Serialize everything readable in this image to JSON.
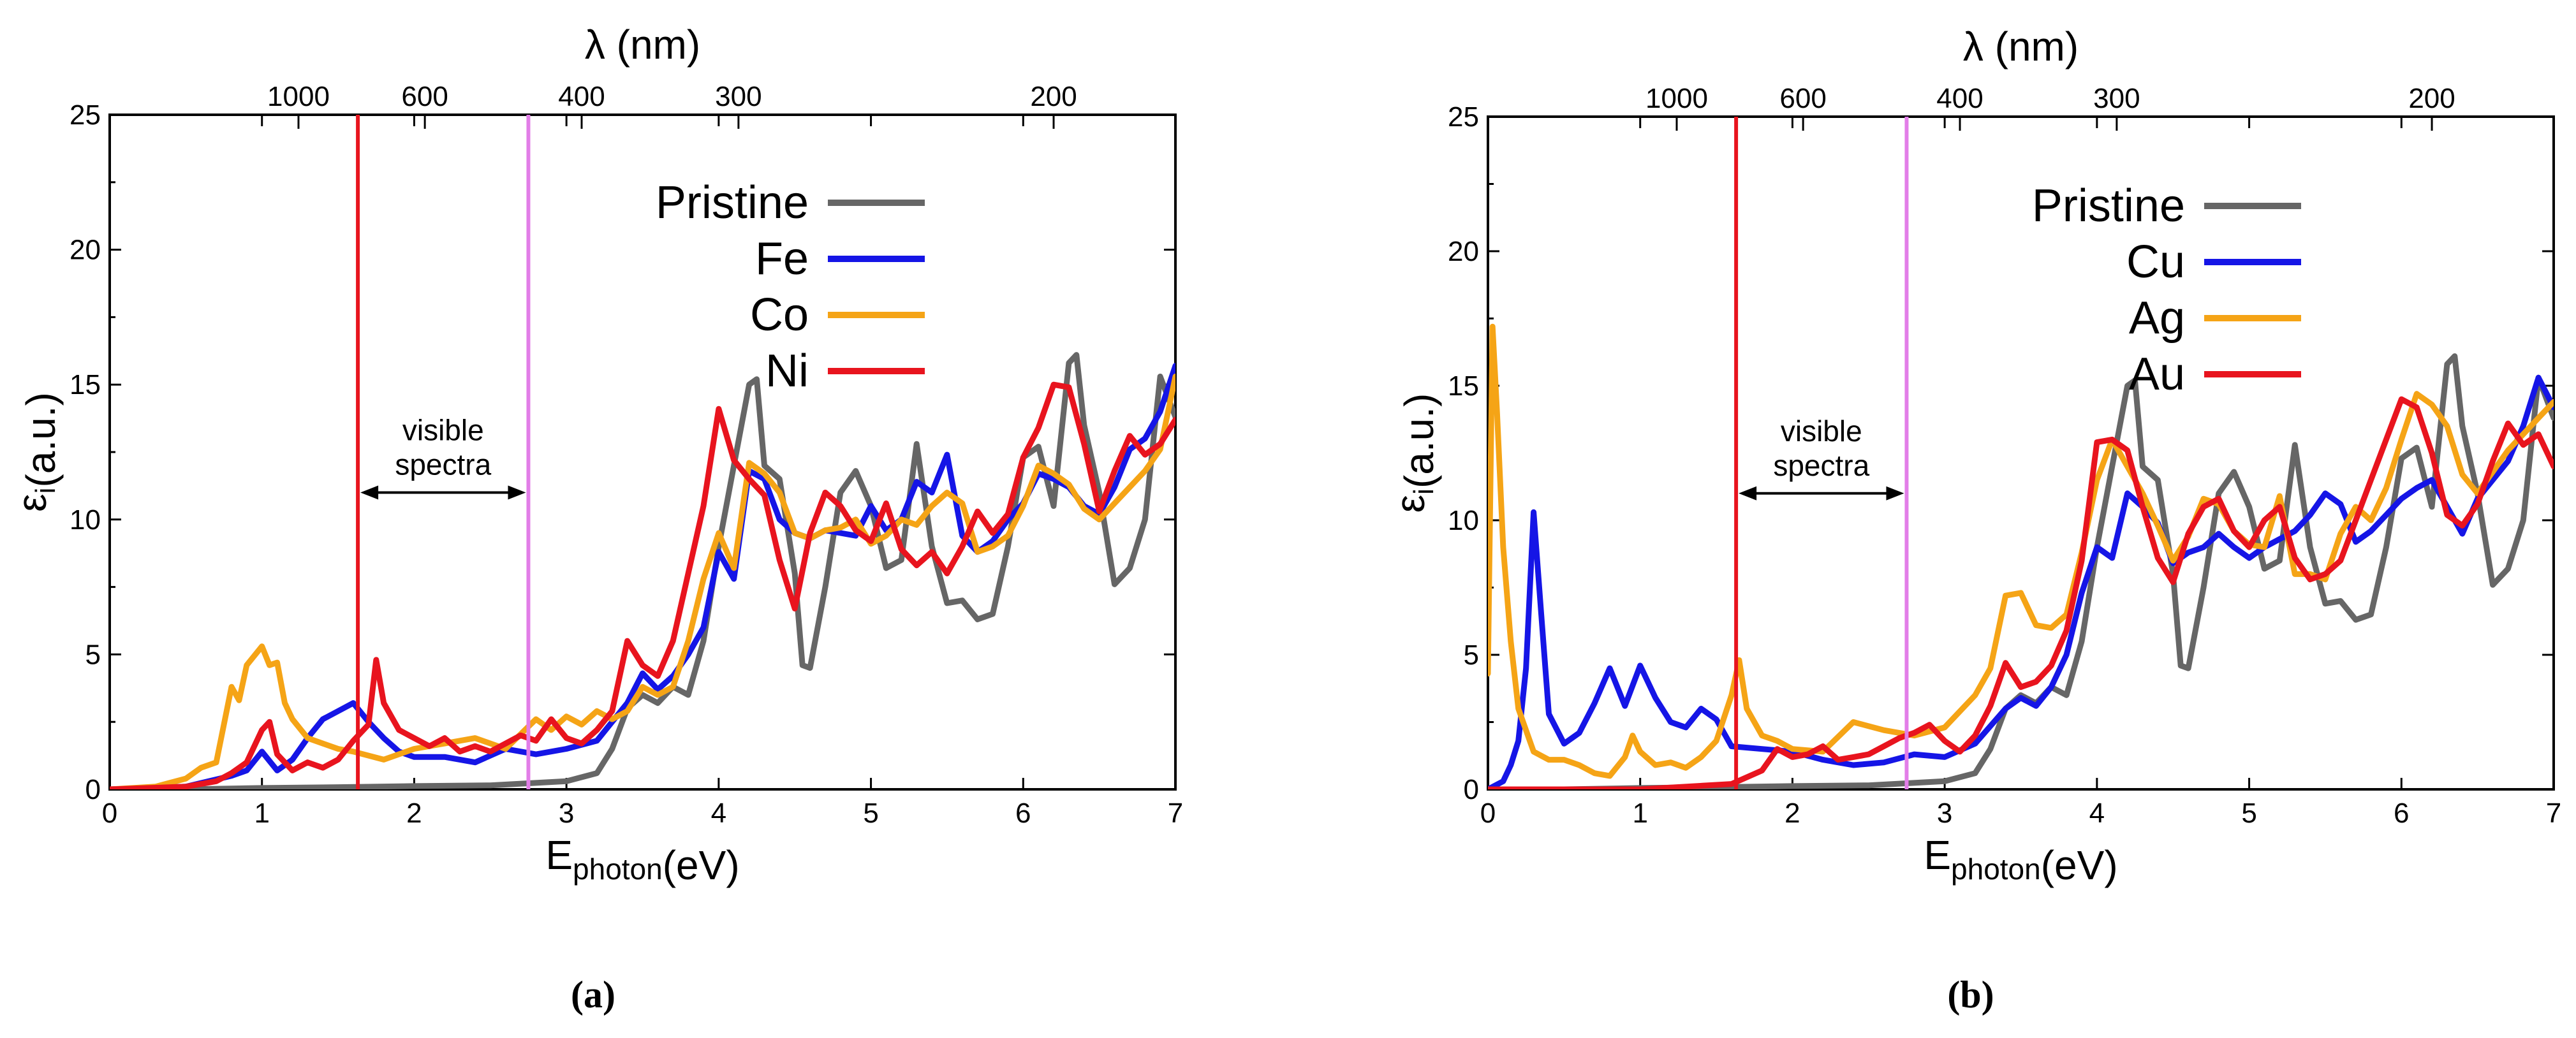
{
  "chart_data": [
    {
      "type": "line",
      "panel": "a",
      "caption": "(a)",
      "xlabel_main": "E",
      "xlabel_sub": "photon",
      "xlabel_unit": "(eV)",
      "ylabel_main": "ε",
      "ylabel_sub": "i",
      "ylabel_unit": "(a.u.)",
      "top_axis_label": "λ (nm)",
      "xlim": [
        0,
        7
      ],
      "ylim": [
        0,
        25
      ],
      "xticks": [
        0,
        1,
        2,
        3,
        4,
        5,
        6,
        7
      ],
      "yticks": [
        0,
        5,
        10,
        15,
        20,
        25
      ],
      "top_ticks": [
        {
          "label": "1000",
          "energy": 1.24
        },
        {
          "label": "600",
          "energy": 2.07
        },
        {
          "label": "400",
          "energy": 3.1
        },
        {
          "label": "300",
          "energy": 4.13
        },
        {
          "label": "200",
          "energy": 6.2
        }
      ],
      "vlines": [
        {
          "x": 1.63,
          "color": "#e8141e"
        },
        {
          "x": 2.75,
          "color": "#e27ee8"
        }
      ],
      "annotation": {
        "line1": "visible",
        "line2": "spectra",
        "x_from": 1.63,
        "x_to": 2.75,
        "y": 11
      },
      "series": [
        {
          "name": "Pristine",
          "color": "#666666",
          "x": [
            0,
            0.5,
            1,
            1.5,
            2,
            2.5,
            3,
            3.2,
            3.3,
            3.4,
            3.5,
            3.6,
            3.7,
            3.8,
            3.9,
            4,
            4.1,
            4.2,
            4.25,
            4.3,
            4.4,
            4.5,
            4.55,
            4.6,
            4.7,
            4.8,
            4.9,
            5,
            5.1,
            5.2,
            5.3,
            5.4,
            5.5,
            5.6,
            5.7,
            5.8,
            5.9,
            6,
            6.1,
            6.2,
            6.3,
            6.35,
            6.4,
            6.5,
            6.6,
            6.7,
            6.8,
            6.9,
            7
          ],
          "y": [
            0,
            0,
            0.05,
            0.08,
            0.12,
            0.15,
            0.3,
            0.6,
            1.5,
            3,
            3.5,
            3.2,
            3.8,
            3.5,
            5.5,
            9,
            12,
            15,
            15.2,
            12,
            11.5,
            8,
            4.6,
            4.5,
            7.5,
            11,
            11.8,
            10.5,
            8.2,
            8.5,
            12.8,
            9,
            6.9,
            7,
            6.3,
            6.5,
            9,
            12.3,
            12.7,
            10.5,
            15.8,
            16.1,
            13.5,
            11,
            7.6,
            8.2,
            10,
            15.3,
            13.8
          ]
        },
        {
          "name": "Fe",
          "color": "#1515e6",
          "x": [
            0,
            0.5,
            0.8,
            0.9,
            1,
            1.1,
            1.2,
            1.3,
            1.4,
            1.5,
            1.6,
            1.7,
            1.8,
            1.9,
            2,
            2.2,
            2.4,
            2.6,
            2.8,
            3,
            3.2,
            3.4,
            3.5,
            3.6,
            3.7,
            3.8,
            3.9,
            4,
            4.1,
            4.2,
            4.3,
            4.4,
            4.5,
            4.6,
            4.7,
            4.8,
            4.9,
            5,
            5.1,
            5.2,
            5.3,
            5.4,
            5.5,
            5.6,
            5.7,
            5.8,
            5.9,
            6,
            6.1,
            6.2,
            6.3,
            6.4,
            6.5,
            6.6,
            6.7,
            6.8,
            6.9,
            7
          ],
          "y": [
            0,
            0.1,
            0.5,
            0.7,
            1.4,
            0.7,
            1.1,
            1.9,
            2.6,
            2.9,
            3.2,
            2.5,
            1.9,
            1.4,
            1.2,
            1.2,
            1,
            1.5,
            1.3,
            1.5,
            1.8,
            3.2,
            4.3,
            3.7,
            4.2,
            5,
            6,
            8.8,
            7.8,
            11.8,
            11.5,
            10,
            9.5,
            9.3,
            9.6,
            9.5,
            9.4,
            10.5,
            9.6,
            10,
            11.4,
            11,
            12.4,
            9.4,
            8.8,
            9.2,
            10,
            10.6,
            11.7,
            11.5,
            11.2,
            10.5,
            10.2,
            11.2,
            12.6,
            13,
            14,
            15.7
          ]
        },
        {
          "name": "Co",
          "color": "#f5a416",
          "x": [
            0,
            0.3,
            0.5,
            0.6,
            0.7,
            0.8,
            0.85,
            0.9,
            1,
            1.05,
            1.1,
            1.15,
            1.2,
            1.3,
            1.4,
            1.5,
            1.6,
            1.8,
            2,
            2.2,
            2.4,
            2.6,
            2.8,
            2.9,
            3,
            3.1,
            3.2,
            3.3,
            3.4,
            3.5,
            3.6,
            3.7,
            3.8,
            3.9,
            4,
            4.1,
            4.2,
            4.3,
            4.4,
            4.5,
            4.6,
            4.7,
            4.8,
            4.9,
            5,
            5.1,
            5.2,
            5.3,
            5.4,
            5.5,
            5.6,
            5.7,
            5.8,
            5.9,
            6,
            6.1,
            6.2,
            6.3,
            6.4,
            6.5,
            6.6,
            6.7,
            6.8,
            6.9,
            7
          ],
          "y": [
            0,
            0.1,
            0.4,
            0.8,
            1,
            3.8,
            3.3,
            4.6,
            5.3,
            4.6,
            4.7,
            3.2,
            2.6,
            1.9,
            1.7,
            1.5,
            1.4,
            1.1,
            1.5,
            1.7,
            1.9,
            1.5,
            2.6,
            2.2,
            2.7,
            2.4,
            2.9,
            2.6,
            2.9,
            3.8,
            3.5,
            3.8,
            5.5,
            7.8,
            9.5,
            8.2,
            12.1,
            11.7,
            11,
            9.5,
            9.3,
            9.6,
            9.7,
            10,
            9.1,
            9.4,
            10,
            9.8,
            10.5,
            11,
            10.6,
            8.8,
            9,
            9.4,
            10.5,
            12,
            11.7,
            11.3,
            10.4,
            10,
            10.6,
            11.2,
            11.8,
            12.6,
            15.3
          ]
        },
        {
          "name": "Ni",
          "color": "#e8141e",
          "x": [
            0,
            0.5,
            0.7,
            0.8,
            0.9,
            1,
            1.05,
            1.1,
            1.2,
            1.3,
            1.4,
            1.5,
            1.6,
            1.7,
            1.75,
            1.8,
            1.9,
            2,
            2.1,
            2.2,
            2.3,
            2.4,
            2.5,
            2.6,
            2.7,
            2.8,
            2.9,
            3,
            3.1,
            3.2,
            3.3,
            3.4,
            3.5,
            3.6,
            3.7,
            3.8,
            3.9,
            4,
            4.1,
            4.2,
            4.3,
            4.4,
            4.5,
            4.6,
            4.7,
            4.8,
            4.9,
            5,
            5.1,
            5.2,
            5.3,
            5.4,
            5.5,
            5.6,
            5.7,
            5.8,
            5.9,
            6,
            6.1,
            6.2,
            6.3,
            6.4,
            6.5,
            6.6,
            6.7,
            6.8,
            6.9,
            7
          ],
          "y": [
            0,
            0.1,
            0.3,
            0.6,
            1,
            2.2,
            2.5,
            1.3,
            0.7,
            1,
            0.8,
            1.1,
            1.8,
            2.4,
            4.8,
            3.2,
            2.2,
            1.9,
            1.6,
            1.9,
            1.4,
            1.6,
            1.4,
            1.7,
            2,
            1.8,
            2.6,
            1.9,
            1.7,
            2.2,
            2.9,
            5.5,
            4.6,
            4.2,
            5.5,
            8,
            10.5,
            14.1,
            12.2,
            11.5,
            10.9,
            8.5,
            6.7,
            9.5,
            11,
            10.5,
            9.6,
            9.2,
            10.6,
            8.9,
            8.3,
            8.8,
            8,
            9,
            10.3,
            9.5,
            10.2,
            12.3,
            13.4,
            15,
            14.9,
            12.8,
            10.3,
            11.8,
            13.1,
            12.4,
            12.8,
            13.7
          ]
        }
      ]
    },
    {
      "type": "line",
      "panel": "b",
      "caption": "(b)",
      "xlabel_main": "E",
      "xlabel_sub": "photon",
      "xlabel_unit": "(eV)",
      "ylabel_main": "ε",
      "ylabel_sub": "i",
      "ylabel_unit": "(a.u.)",
      "top_axis_label": "λ (nm)",
      "xlim": [
        0,
        7
      ],
      "ylim": [
        0,
        25
      ],
      "xticks": [
        0,
        1,
        2,
        3,
        4,
        5,
        6,
        7
      ],
      "yticks": [
        0,
        5,
        10,
        15,
        20,
        25
      ],
      "top_ticks": [
        {
          "label": "1000",
          "energy": 1.24
        },
        {
          "label": "600",
          "energy": 2.07
        },
        {
          "label": "400",
          "energy": 3.1
        },
        {
          "label": "300",
          "energy": 4.13
        },
        {
          "label": "200",
          "energy": 6.2
        }
      ],
      "vlines": [
        {
          "x": 1.63,
          "color": "#e8141e"
        },
        {
          "x": 2.75,
          "color": "#e27ee8"
        }
      ],
      "annotation": {
        "line1": "visible",
        "line2": "spectra",
        "x_from": 1.63,
        "x_to": 2.75,
        "y": 11
      },
      "series": [
        {
          "name": "Pristine",
          "color": "#666666",
          "x": [
            0,
            0.5,
            1,
            1.5,
            2,
            2.5,
            3,
            3.2,
            3.3,
            3.4,
            3.5,
            3.6,
            3.7,
            3.8,
            3.9,
            4,
            4.1,
            4.2,
            4.25,
            4.3,
            4.4,
            4.5,
            4.55,
            4.6,
            4.7,
            4.8,
            4.9,
            5,
            5.1,
            5.2,
            5.3,
            5.4,
            5.5,
            5.6,
            5.7,
            5.8,
            5.9,
            6,
            6.1,
            6.2,
            6.3,
            6.35,
            6.4,
            6.5,
            6.6,
            6.7,
            6.8,
            6.9,
            7
          ],
          "y": [
            0,
            0,
            0.05,
            0.08,
            0.12,
            0.15,
            0.3,
            0.6,
            1.5,
            3,
            3.5,
            3.2,
            3.8,
            3.5,
            5.5,
            9,
            12,
            15,
            15.2,
            12,
            11.5,
            8,
            4.6,
            4.5,
            7.5,
            11,
            11.8,
            10.5,
            8.2,
            8.5,
            12.8,
            9,
            6.9,
            7,
            6.3,
            6.5,
            9,
            12.3,
            12.7,
            10.5,
            15.8,
            16.1,
            13.5,
            11,
            7.6,
            8.2,
            10,
            15.3,
            13.8
          ]
        },
        {
          "name": "Cu",
          "color": "#1515e6",
          "x": [
            0,
            0.1,
            0.15,
            0.2,
            0.25,
            0.3,
            0.35,
            0.4,
            0.5,
            0.6,
            0.7,
            0.8,
            0.9,
            1,
            1.1,
            1.2,
            1.3,
            1.4,
            1.5,
            1.6,
            1.8,
            2,
            2.2,
            2.4,
            2.6,
            2.8,
            3,
            3.2,
            3.4,
            3.5,
            3.6,
            3.7,
            3.8,
            3.9,
            4,
            4.1,
            4.2,
            4.3,
            4.4,
            4.5,
            4.6,
            4.7,
            4.8,
            4.9,
            5,
            5.1,
            5.2,
            5.3,
            5.4,
            5.5,
            5.6,
            5.7,
            5.8,
            5.9,
            6,
            6.1,
            6.2,
            6.3,
            6.4,
            6.5,
            6.6,
            6.7,
            6.8,
            6.9,
            7
          ],
          "y": [
            0,
            0.3,
            0.9,
            1.8,
            4.5,
            10.3,
            6.5,
            2.8,
            1.7,
            2.1,
            3.2,
            4.5,
            3.1,
            4.6,
            3.4,
            2.5,
            2.3,
            3,
            2.6,
            1.6,
            1.5,
            1.4,
            1.1,
            0.9,
            1,
            1.3,
            1.2,
            1.7,
            3,
            3.4,
            3.1,
            3.8,
            5,
            7.3,
            9,
            8.6,
            11,
            10.5,
            9.9,
            8.4,
            8.8,
            9,
            9.5,
            9,
            8.6,
            9,
            9.3,
            9.6,
            10.2,
            11,
            10.6,
            9.2,
            9.6,
            10.2,
            10.8,
            11.2,
            11.5,
            10.5,
            9.5,
            10.8,
            11.5,
            12.2,
            13.5,
            15.3,
            14.2
          ]
        },
        {
          "name": "Ag",
          "color": "#f5a416",
          "x": [
            0,
            0.03,
            0.06,
            0.1,
            0.15,
            0.2,
            0.3,
            0.4,
            0.5,
            0.6,
            0.7,
            0.8,
            0.9,
            0.95,
            1,
            1.1,
            1.2,
            1.3,
            1.4,
            1.5,
            1.6,
            1.65,
            1.7,
            1.8,
            1.9,
            2,
            2.2,
            2.4,
            2.6,
            2.8,
            3,
            3.2,
            3.3,
            3.4,
            3.5,
            3.6,
            3.7,
            3.8,
            3.9,
            4,
            4.1,
            4.2,
            4.3,
            4.4,
            4.5,
            4.6,
            4.7,
            4.8,
            4.9,
            5,
            5.1,
            5.2,
            5.3,
            5.4,
            5.5,
            5.6,
            5.7,
            5.8,
            5.9,
            6,
            6.1,
            6.2,
            6.3,
            6.4,
            6.5,
            6.6,
            6.7,
            6.8,
            6.9,
            7
          ],
          "y": [
            4.3,
            17.2,
            14,
            9,
            5.5,
            3,
            1.4,
            1.1,
            1.1,
            0.9,
            0.6,
            0.5,
            1.2,
            2,
            1.4,
            0.9,
            1,
            0.8,
            1.2,
            1.8,
            3.5,
            4.8,
            3,
            2,
            1.8,
            1.5,
            1.4,
            2.5,
            2.2,
            2,
            2.3,
            3.5,
            4.5,
            7.2,
            7.3,
            6.1,
            6,
            6.5,
            8.8,
            11.5,
            13,
            12,
            11,
            9.8,
            8.5,
            9.4,
            10.8,
            10.6,
            9.6,
            9.1,
            9,
            10.9,
            8,
            8,
            7.8,
            9.5,
            10.5,
            10,
            11.2,
            13,
            14.7,
            14.3,
            13.5,
            11.7,
            11,
            11.8,
            12.6,
            13.2,
            13.8,
            14.4
          ]
        },
        {
          "name": "Au",
          "color": "#e8141e",
          "x": [
            0,
            1,
            1.6,
            1.8,
            1.9,
            2,
            2.1,
            2.2,
            2.3,
            2.4,
            2.5,
            2.6,
            2.7,
            2.8,
            2.9,
            3,
            3.1,
            3.2,
            3.3,
            3.4,
            3.5,
            3.6,
            3.7,
            3.8,
            3.9,
            4,
            4.1,
            4.2,
            4.3,
            4.4,
            4.5,
            4.6,
            4.7,
            4.8,
            4.9,
            5,
            5.1,
            5.2,
            5.3,
            5.4,
            5.5,
            5.6,
            5.7,
            5.8,
            5.9,
            6,
            6.1,
            6.2,
            6.3,
            6.4,
            6.5,
            6.6,
            6.7,
            6.8,
            6.9,
            7
          ],
          "y": [
            0,
            0,
            0.2,
            0.7,
            1.5,
            1.2,
            1.3,
            1.6,
            1.1,
            1.2,
            1.3,
            1.6,
            1.9,
            2.1,
            2.4,
            1.8,
            1.4,
            2,
            3.1,
            4.7,
            3.8,
            4,
            4.6,
            5.9,
            8.5,
            12.9,
            13,
            12.6,
            10.5,
            8.6,
            7.7,
            9.5,
            10.5,
            10.8,
            9.6,
            9,
            10,
            10.5,
            8.6,
            7.8,
            8,
            8.5,
            10,
            11.5,
            13,
            14.5,
            14.2,
            12.5,
            10.2,
            9.8,
            10.6,
            12.2,
            13.6,
            12.8,
            13.2,
            12
          ]
        }
      ]
    }
  ]
}
